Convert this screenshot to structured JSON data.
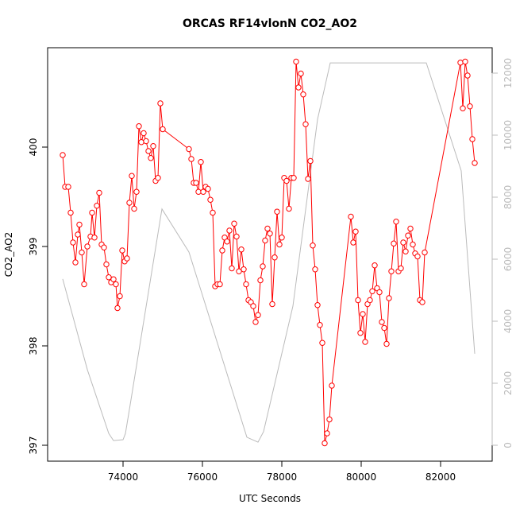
{
  "chart_data": {
    "type": "line",
    "title": "ORCAS RF14vlonN CO2_AO2",
    "xlabel": "UTC Seconds",
    "ylabel": "CO2_AO2",
    "xlim": [
      72100,
      83300
    ],
    "xticks": [
      74000,
      76000,
      78000,
      80000,
      82000
    ],
    "ylim": [
      396.84,
      401.0
    ],
    "yticks": [
      397,
      398,
      399,
      400
    ],
    "y2lim": [
      -513,
      12820
    ],
    "y2ticks": [
      0,
      2000,
      4000,
      6000,
      8000,
      10000,
      12000
    ],
    "series": [
      {
        "color": "#bbbbbb",
        "axis": "y2",
        "markers": false,
        "x": [
          72480,
          73100,
          73640,
          73760,
          74000,
          74060,
          74160,
          74980,
          75660,
          77120,
          77400,
          77540,
          78280,
          78900,
          79220,
          81640,
          82520,
          82860
        ],
        "values": [
          5360,
          2440,
          380,
          150,
          180,
          380,
          1150,
          7620,
          6230,
          260,
          100,
          440,
          4490,
          10510,
          12330,
          12330,
          8850,
          2950
        ]
      },
      {
        "color": "#ff0000",
        "axis": "y",
        "markers": true,
        "x": [
          72480,
          72540,
          72620,
          72680,
          72740,
          72800,
          72860,
          72900,
          72960,
          73020,
          73100,
          73180,
          73220,
          73280,
          73340,
          73400,
          73460,
          73520,
          73580,
          73640,
          73700,
          73760,
          73820,
          73860,
          73920,
          73980,
          74040,
          74100,
          74160,
          74220,
          74280,
          74340,
          74400,
          74460,
          74520,
          74580,
          74640,
          74700,
          74760,
          74820,
          74880,
          74940,
          75000,
          75660,
          75720,
          75780,
          75840,
          75900,
          75960,
          76020,
          76080,
          76140,
          76200,
          76260,
          76320,
          76380,
          76440,
          76500,
          76560,
          76620,
          76680,
          76740,
          76800,
          76860,
          76920,
          76980,
          77040,
          77100,
          77160,
          77220,
          77280,
          77340,
          77400,
          77460,
          77520,
          77580,
          77640,
          77700,
          77760,
          77820,
          77880,
          77940,
          78000,
          78060,
          78120,
          78180,
          78240,
          78300,
          78360,
          78420,
          78480,
          78540,
          78600,
          78660,
          78720,
          78780,
          78840,
          78900,
          78960,
          79020,
          79080,
          79140,
          79200,
          79260,
          79740,
          79800,
          79860,
          79920,
          79980,
          80040,
          80100,
          80160,
          80220,
          80280,
          80340,
          80400,
          80460,
          80520,
          80580,
          80640,
          80700,
          80760,
          80820,
          80880,
          80940,
          81000,
          81060,
          81120,
          81180,
          81240,
          81300,
          81360,
          81420,
          81480,
          81540,
          81600,
          82500,
          82560,
          82620,
          82680,
          82740,
          82800,
          82860
        ],
        "values": [
          399.92,
          399.6,
          399.6,
          399.34,
          399.04,
          398.84,
          399.12,
          399.22,
          398.94,
          398.62,
          399.0,
          399.1,
          399.34,
          399.09,
          399.41,
          399.54,
          399.02,
          398.99,
          398.82,
          398.69,
          398.64,
          398.67,
          398.62,
          398.38,
          398.5,
          398.96,
          398.85,
          398.88,
          399.44,
          399.71,
          399.38,
          399.55,
          400.21,
          400.05,
          400.14,
          400.06,
          399.96,
          399.89,
          400.01,
          399.66,
          399.69,
          400.44,
          400.18,
          399.98,
          399.88,
          399.64,
          399.64,
          399.55,
          399.85,
          399.55,
          399.6,
          399.58,
          399.47,
          399.34,
          398.6,
          398.62,
          398.62,
          398.96,
          399.09,
          399.05,
          399.16,
          398.78,
          399.23,
          399.1,
          398.75,
          398.97,
          398.77,
          398.62,
          398.46,
          398.44,
          398.4,
          398.24,
          398.31,
          398.66,
          398.8,
          399.06,
          399.18,
          399.13,
          398.42,
          398.89,
          399.35,
          399.02,
          399.09,
          399.69,
          399.66,
          399.38,
          399.69,
          399.69,
          400.86,
          400.6,
          400.74,
          400.53,
          400.23,
          399.68,
          399.86,
          399.01,
          398.77,
          398.41,
          398.21,
          398.03,
          397.02,
          397.12,
          397.26,
          397.6,
          399.3,
          399.04,
          399.15,
          398.46,
          398.13,
          398.32,
          398.04,
          398.42,
          398.46,
          398.55,
          398.81,
          398.58,
          398.54,
          398.24,
          398.18,
          398.02,
          398.48,
          398.75,
          399.03,
          399.25,
          398.75,
          398.78,
          399.04,
          398.95,
          399.11,
          399.18,
          399.02,
          398.93,
          398.9,
          398.46,
          398.44,
          398.94,
          400.85,
          400.39,
          400.86,
          400.72,
          400.41,
          400.08,
          399.84
        ]
      }
    ]
  }
}
